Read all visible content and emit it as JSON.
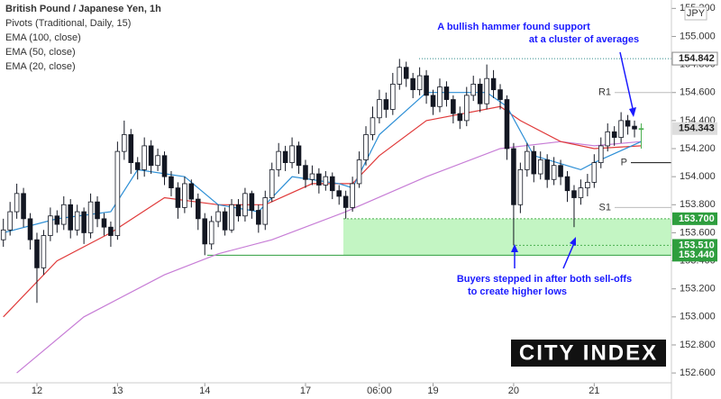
{
  "chart_data": {
    "type": "candlestick",
    "title": "British Pound / Japanese Yen, 1h",
    "indicator_label": "Pivots (Traditional, Daily, 15)",
    "currency": "JPY",
    "categories": [
      null,
      null,
      null,
      null,
      null,
      "12",
      null,
      null,
      null,
      null,
      null,
      null,
      null,
      null,
      null,
      null,
      null,
      "13",
      null,
      null,
      null,
      null,
      null,
      null,
      null,
      null,
      null,
      null,
      null,
      null,
      "14",
      null,
      null,
      null,
      null,
      null,
      null,
      null,
      null,
      null,
      null,
      null,
      null,
      null,
      null,
      "17",
      null,
      null,
      null,
      null,
      null,
      null,
      null,
      null,
      null,
      null,
      "06:00",
      null,
      null,
      null,
      null,
      null,
      null,
      null,
      "19",
      null,
      null,
      null,
      null,
      null,
      null,
      null,
      null,
      null,
      null,
      null,
      "20",
      null,
      null,
      null,
      null,
      null,
      null,
      null,
      null,
      null,
      null,
      null,
      "21",
      null,
      null,
      null,
      null,
      null,
      null,
      null
    ],
    "open": [
      153.55,
      153.62,
      153.75,
      153.88,
      153.7,
      153.55,
      153.35,
      153.58,
      153.72,
      153.66,
      153.8,
      153.62,
      153.75,
      153.6,
      153.82,
      153.7,
      153.64,
      153.58,
      154.18,
      154.3,
      154.1,
      154.05,
      154.22,
      154.08,
      154.15,
      154.0,
      153.92,
      153.78,
      153.95,
      153.84,
      153.7,
      153.52,
      153.68,
      153.75,
      153.62,
      153.8,
      153.72,
      153.88,
      153.76,
      153.66,
      153.85,
      154.05,
      154.18,
      154.1,
      154.22,
      154.08,
      153.98,
      154.02,
      153.94,
      154.0,
      153.9,
      153.86,
      153.78,
      153.95,
      154.12,
      154.3,
      154.42,
      154.55,
      154.48,
      154.66,
      154.78,
      154.7,
      154.62,
      154.72,
      154.58,
      154.5,
      154.64,
      154.55,
      154.45,
      154.4,
      154.58,
      154.66,
      154.52,
      154.7,
      154.62,
      154.55,
      154.2,
      153.8,
      154.05,
      154.18,
      154.02,
      154.12,
      153.98,
      154.08,
      154.0,
      153.9,
      153.85,
      153.92,
      153.96,
      154.1,
      154.22,
      154.32,
      154.28,
      154.4,
      154.36,
      154.34
    ],
    "high": [
      153.7,
      153.82,
      153.95,
      153.92,
      153.74,
      153.6,
      153.62,
      153.78,
      153.76,
      153.86,
      153.84,
      153.8,
      153.78,
      153.88,
      153.86,
      153.74,
      153.68,
      154.25,
      154.4,
      154.34,
      154.14,
      154.28,
      154.26,
      154.2,
      154.18,
      154.04,
      153.96,
      154.0,
      153.98,
      153.88,
      153.74,
      153.72,
      153.8,
      153.78,
      153.84,
      153.84,
      153.92,
      153.9,
      153.8,
      153.9,
      154.1,
      154.24,
      154.22,
      154.28,
      154.25,
      154.12,
      154.08,
      154.06,
      154.04,
      154.03,
      153.94,
      153.9,
      154.0,
      154.18,
      154.36,
      154.5,
      154.62,
      154.6,
      154.74,
      154.84,
      154.82,
      154.74,
      154.78,
      154.76,
      154.62,
      154.7,
      154.68,
      154.58,
      154.5,
      154.64,
      154.72,
      154.7,
      154.8,
      154.76,
      154.66,
      154.58,
      154.24,
      154.1,
      154.24,
      154.22,
      154.18,
      154.16,
      154.14,
      154.12,
      154.04,
      153.94,
      153.98,
      154.02,
      154.16,
      154.28,
      154.38,
      154.36,
      154.46,
      154.44,
      154.4,
      154.38
    ],
    "low": [
      153.5,
      153.58,
      153.7,
      153.64,
      153.48,
      153.1,
      153.3,
      153.54,
      153.6,
      153.62,
      153.56,
      153.58,
      153.52,
      153.56,
      153.64,
      153.58,
      153.5,
      153.55,
      154.12,
      154.02,
      153.98,
      154.0,
      154.02,
      154.04,
      153.94,
      153.86,
      153.7,
      153.74,
      153.78,
      153.62,
      153.44,
      153.48,
      153.64,
      153.58,
      153.6,
      153.68,
      153.68,
      153.7,
      153.6,
      153.62,
      153.82,
      154.0,
      154.04,
      154.06,
      154.02,
      153.92,
      153.94,
      153.88,
      153.9,
      153.84,
      153.8,
      153.7,
      153.75,
      153.92,
      154.08,
      154.26,
      154.38,
      154.42,
      154.44,
      154.62,
      154.64,
      154.56,
      154.58,
      154.52,
      154.44,
      154.46,
      154.5,
      154.38,
      154.34,
      154.36,
      154.54,
      154.46,
      154.48,
      154.56,
      154.48,
      154.12,
      153.51,
      153.74,
      154.0,
      153.96,
      153.98,
      153.92,
      153.94,
      153.94,
      153.82,
      153.64,
      153.8,
      153.86,
      153.92,
      154.06,
      154.18,
      154.22,
      154.24,
      154.3,
      154.28,
      154.2
    ],
    "close": [
      153.62,
      153.75,
      153.88,
      153.7,
      153.55,
      153.35,
      153.58,
      153.72,
      153.66,
      153.8,
      153.62,
      153.75,
      153.6,
      153.82,
      153.7,
      153.64,
      153.58,
      154.18,
      154.3,
      154.1,
      154.05,
      154.22,
      154.08,
      154.15,
      154.0,
      153.92,
      153.78,
      153.95,
      153.84,
      153.7,
      153.52,
      153.68,
      153.75,
      153.62,
      153.8,
      153.72,
      153.88,
      153.76,
      153.66,
      153.85,
      154.05,
      154.18,
      154.1,
      154.22,
      154.08,
      153.98,
      154.02,
      153.94,
      154.0,
      153.9,
      153.86,
      153.78,
      153.95,
      154.12,
      154.3,
      154.42,
      154.55,
      154.48,
      154.66,
      154.78,
      154.7,
      154.62,
      154.72,
      154.58,
      154.5,
      154.64,
      154.55,
      154.45,
      154.4,
      154.58,
      154.66,
      154.52,
      154.7,
      154.62,
      154.55,
      154.2,
      153.8,
      154.05,
      154.18,
      154.02,
      154.12,
      153.98,
      154.08,
      154.0,
      153.9,
      153.85,
      153.92,
      153.96,
      154.1,
      154.22,
      154.32,
      154.28,
      154.4,
      154.36,
      154.34,
      154.343
    ],
    "up_color": "#ffffff",
    "down_color": "#131722",
    "last_candle_color": "#4caf50",
    "series": [
      {
        "name": "EMA (100, close)",
        "color": "#c77dd6",
        "x": [
          2,
          12,
          24,
          32,
          40,
          51,
          63,
          74,
          83,
          88,
          95
        ],
        "values": [
          152.6,
          153.0,
          153.3,
          153.45,
          153.55,
          153.75,
          154.0,
          154.2,
          154.25,
          154.22,
          154.25
        ]
      },
      {
        "name": "EMA (50, close)",
        "color": "#e03a3a",
        "x": [
          0,
          8,
          16,
          24,
          32,
          39,
          46,
          52,
          56,
          63,
          74,
          77,
          83,
          88,
          95
        ],
        "values": [
          153.0,
          153.4,
          153.6,
          153.85,
          153.8,
          153.8,
          153.95,
          153.95,
          154.15,
          154.4,
          154.5,
          154.4,
          154.25,
          154.2,
          154.22
        ]
      },
      {
        "name": "EMA (20, close)",
        "color": "#2d8fd6",
        "x": [
          0,
          8,
          16,
          20,
          27,
          32,
          38,
          43,
          50,
          52,
          56,
          63,
          72,
          75,
          79,
          86,
          88,
          95
        ],
        "values": [
          153.6,
          153.7,
          153.75,
          154.05,
          154.0,
          153.8,
          153.75,
          154.0,
          153.95,
          153.92,
          154.3,
          154.6,
          154.6,
          154.5,
          154.15,
          154.05,
          154.1,
          154.25
        ]
      }
    ],
    "pivots": [
      {
        "name": "R1",
        "value": 154.6
      },
      {
        "name": "P",
        "value": 154.1
      },
      {
        "name": "S1",
        "value": 153.78
      }
    ],
    "price_labels": [
      154.842,
      154.343,
      {
        "value": 153.7,
        "label": "153.700"
      },
      {
        "value": 153.51,
        "label": "153.510"
      },
      {
        "value": 153.44,
        "label": "153.440"
      }
    ],
    "ylim": [
      152.53,
      155.26
    ],
    "yticks": [
      {
        "value": 152.6,
        "label": "152.600"
      },
      {
        "value": 152.8,
        "label": "152.800"
      },
      {
        "value": 153.0,
        "label": "153.000"
      },
      {
        "value": 153.2,
        "label": "153.200"
      },
      {
        "value": 153.4,
        "label": "153.400"
      },
      {
        "value": 153.6,
        "label": "153.600"
      },
      {
        "value": 153.8,
        "label": "153.800"
      },
      {
        "value": 154.0,
        "label": "154.000"
      },
      {
        "value": 154.2,
        "label": "154.200"
      },
      {
        "value": 154.4,
        "label": "154.400"
      },
      {
        "value": 154.6,
        "label": "154.600"
      },
      {
        "value": 154.8,
        "label": "154.800"
      },
      {
        "value": 155.0,
        "label": "155.000"
      },
      {
        "value": 155.2,
        "label": "155.200"
      }
    ],
    "annotations": [
      [
        "A bullish hammer found support",
        "at a cluster of averages"
      ],
      [
        "Buyers stepped in after both sell-offs",
        "to create higher lows"
      ]
    ],
    "logo": "CITY INDEX"
  }
}
